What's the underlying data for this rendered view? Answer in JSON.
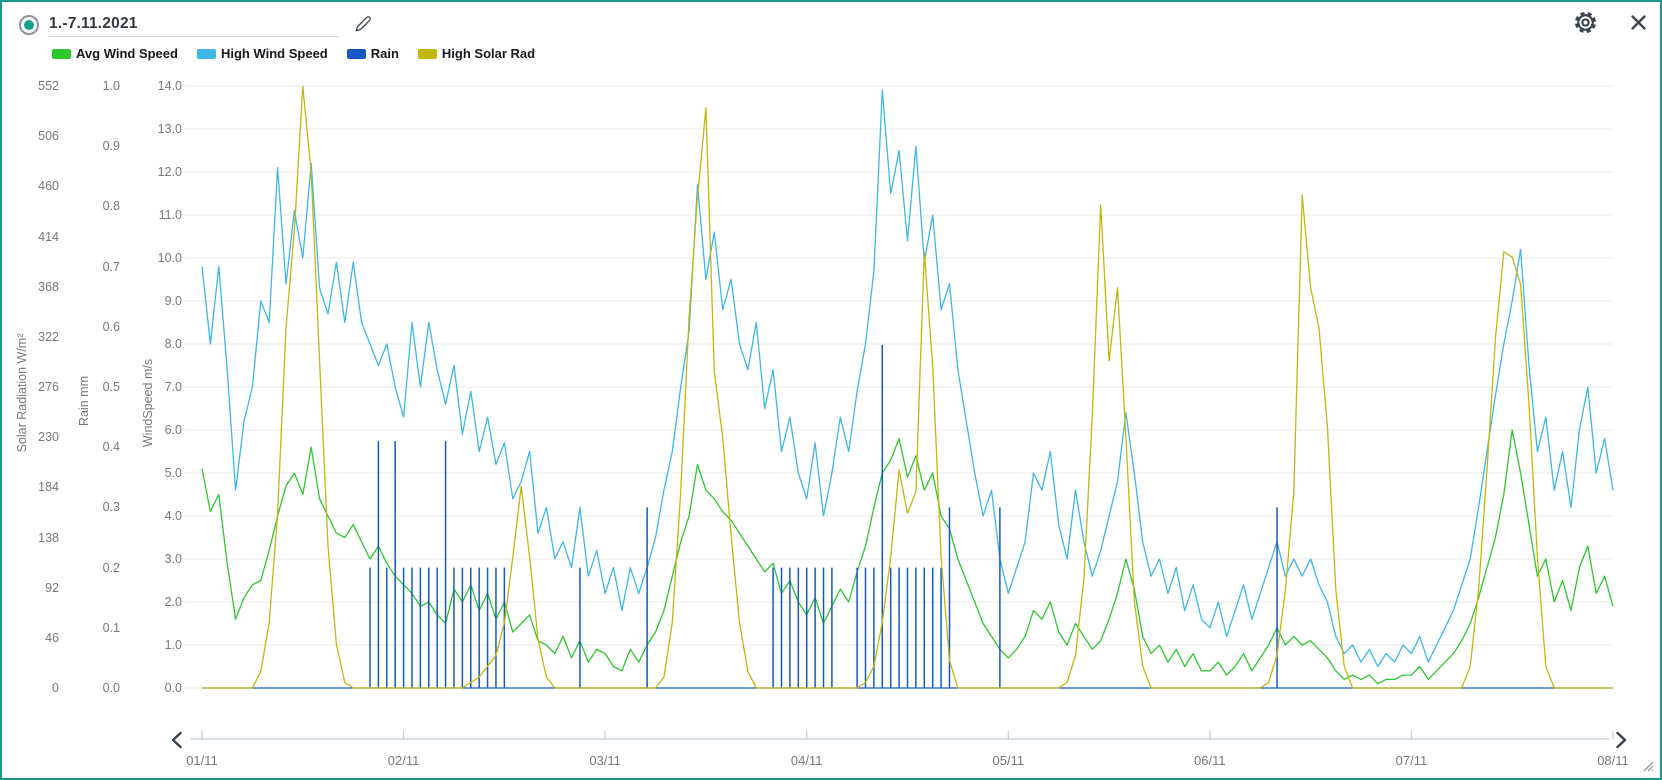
{
  "window": {
    "accent_color": "#18998b"
  },
  "toolbar": {
    "date_range": "1.-7.11.2021",
    "edit_icon": "pencil-icon",
    "settings_icon": "gear-icon",
    "close_icon": "close-icon"
  },
  "legend": {
    "items": [
      {
        "label": "Avg Wind Speed",
        "color": "#2ec72e"
      },
      {
        "label": "High Wind Speed",
        "color": "#3eb7e6"
      },
      {
        "label": "Rain",
        "color": "#1659c2"
      },
      {
        "label": "High Solar Rad",
        "color": "#c4b70c"
      }
    ]
  },
  "axes": {
    "solar": {
      "title": "Solar Radiation W/m²",
      "max": 552,
      "min": 0,
      "tick_labels": [
        "552",
        "506",
        "460",
        "414",
        "368",
        "322",
        "276",
        "230",
        "184",
        "138",
        "92",
        "46",
        "0"
      ]
    },
    "rain": {
      "title": "Rain mm",
      "max": 1.0,
      "min": 0,
      "tick_labels": [
        "1.0",
        "0.9",
        "0.8",
        "0.7",
        "0.6",
        "0.5",
        "0.4",
        "0.3",
        "0.2",
        "0.1",
        "0.0"
      ]
    },
    "wind": {
      "title": "WindSpeed m/s",
      "max": 14.0,
      "min": 0,
      "tick_labels": [
        "14.0",
        "13.0",
        "12.0",
        "11.0",
        "10.0",
        "9.0",
        "8.0",
        "7.0",
        "6.0",
        "5.0",
        "4.0",
        "3.0",
        "2.0",
        "1.0",
        "0.0"
      ]
    }
  },
  "chart_data": {
    "type": "line",
    "title": "",
    "x_start": "01/11 00:00",
    "x_end": "08/11 00:00",
    "x_interval_hours": 1,
    "x_tick_labels": [
      "01/11",
      "02/11",
      "03/11",
      "04/11",
      "05/11",
      "06/11",
      "07/11",
      "08/11"
    ],
    "grid": "horizontal-only",
    "legend_position": "top-left",
    "series": [
      {
        "name": "High Wind Speed",
        "axis": "wind",
        "color": "#3eb7e6",
        "render": "line",
        "values": [
          9.8,
          8.0,
          9.8,
          7.4,
          4.6,
          6.2,
          7.0,
          9.0,
          8.5,
          12.1,
          9.4,
          11.1,
          10.0,
          12.2,
          9.3,
          8.7,
          9.9,
          8.5,
          9.9,
          8.5,
          8.0,
          7.5,
          8.0,
          7.0,
          6.3,
          8.5,
          7.0,
          8.5,
          7.4,
          6.6,
          7.5,
          5.9,
          6.9,
          5.5,
          6.3,
          5.2,
          5.7,
          4.4,
          4.8,
          5.5,
          3.6,
          4.2,
          3.0,
          3.4,
          2.8,
          4.2,
          2.6,
          3.2,
          2.2,
          2.8,
          1.8,
          2.8,
          2.2,
          2.8,
          3.5,
          4.6,
          5.5,
          7.0,
          8.3,
          11.7,
          9.5,
          10.6,
          8.8,
          9.5,
          8.0,
          7.4,
          8.5,
          6.5,
          7.4,
          5.5,
          6.3,
          5.0,
          4.4,
          5.7,
          4.0,
          5.0,
          6.3,
          5.5,
          6.9,
          8.0,
          9.7,
          13.9,
          11.5,
          12.5,
          10.4,
          12.6,
          9.9,
          11.0,
          8.8,
          9.4,
          7.4,
          6.2,
          5.0,
          4.0,
          4.6,
          3.0,
          2.2,
          2.8,
          3.4,
          5.0,
          4.6,
          5.5,
          3.8,
          3.0,
          4.6,
          3.4,
          2.6,
          3.2,
          4.0,
          4.8,
          6.4,
          5.0,
          3.4,
          2.6,
          3.0,
          2.2,
          2.8,
          1.8,
          2.4,
          1.6,
          1.4,
          2.0,
          1.2,
          1.8,
          2.4,
          1.6,
          2.2,
          2.8,
          3.4,
          2.6,
          3.0,
          2.6,
          3.0,
          2.4,
          2.0,
          1.2,
          0.8,
          1.0,
          0.6,
          0.9,
          0.5,
          0.8,
          0.6,
          1.0,
          0.8,
          1.2,
          0.6,
          1.0,
          1.4,
          1.8,
          2.4,
          3.0,
          4.2,
          5.5,
          6.8,
          8.0,
          9.0,
          10.2,
          7.5,
          5.5,
          6.3,
          4.6,
          5.5,
          4.2,
          6.0,
          7.0,
          5.0,
          5.8,
          4.6
        ]
      },
      {
        "name": "Avg Wind Speed",
        "axis": "wind",
        "color": "#2ec72e",
        "render": "line",
        "values": [
          5.1,
          4.1,
          4.5,
          2.9,
          1.6,
          2.1,
          2.4,
          2.5,
          3.2,
          4.0,
          4.7,
          5.0,
          4.5,
          5.6,
          4.4,
          4.0,
          3.6,
          3.5,
          3.8,
          3.4,
          3.0,
          3.3,
          2.9,
          2.6,
          2.4,
          2.2,
          1.9,
          2.0,
          1.7,
          1.5,
          2.3,
          2.0,
          2.4,
          1.8,
          2.2,
          1.6,
          2.0,
          1.3,
          1.5,
          1.7,
          1.1,
          1.0,
          0.8,
          1.2,
          0.7,
          1.1,
          0.6,
          0.9,
          0.8,
          0.5,
          0.4,
          0.9,
          0.6,
          1.0,
          1.3,
          1.8,
          2.6,
          3.4,
          4.0,
          5.2,
          4.6,
          4.4,
          4.1,
          3.9,
          3.6,
          3.3,
          3.0,
          2.7,
          2.9,
          2.2,
          2.5,
          2.0,
          1.7,
          2.1,
          1.5,
          1.9,
          2.3,
          2.0,
          2.7,
          3.3,
          4.2,
          5.0,
          5.3,
          5.8,
          4.9,
          5.4,
          4.6,
          5.0,
          4.0,
          3.7,
          3.0,
          2.5,
          2.0,
          1.5,
          1.2,
          0.9,
          0.7,
          0.9,
          1.2,
          1.8,
          1.6,
          2.0,
          1.3,
          1.0,
          1.5,
          1.2,
          0.9,
          1.1,
          1.6,
          2.2,
          3.0,
          2.3,
          1.2,
          0.8,
          1.0,
          0.6,
          0.9,
          0.5,
          0.8,
          0.4,
          0.4,
          0.6,
          0.3,
          0.5,
          0.8,
          0.4,
          0.7,
          1.0,
          1.4,
          1.0,
          1.2,
          1.0,
          1.1,
          0.9,
          0.7,
          0.4,
          0.2,
          0.3,
          0.2,
          0.3,
          0.1,
          0.2,
          0.2,
          0.3,
          0.3,
          0.5,
          0.2,
          0.4,
          0.6,
          0.8,
          1.1,
          1.5,
          2.1,
          2.8,
          3.5,
          4.5,
          6.0,
          5.0,
          3.8,
          2.6,
          3.0,
          2.0,
          2.5,
          1.8,
          2.8,
          3.3,
          2.2,
          2.6,
          1.9
        ]
      },
      {
        "name": "Rain",
        "axis": "rain",
        "color": "#1659c2",
        "render": "impulse",
        "values": [
          0,
          0,
          0,
          0,
          0,
          0,
          0,
          0,
          0,
          0,
          0,
          0,
          0,
          0,
          0,
          0,
          0,
          0,
          0,
          0,
          0.2,
          0.41,
          0.2,
          0.41,
          0.2,
          0.2,
          0.2,
          0.2,
          0.2,
          0.41,
          0.2,
          0.2,
          0.2,
          0.2,
          0.2,
          0.2,
          0.2,
          0,
          0,
          0,
          0,
          0,
          0,
          0,
          0,
          0.2,
          0,
          0,
          0,
          0,
          0,
          0,
          0,
          0.3,
          0,
          0,
          0,
          0,
          0,
          0,
          0,
          0,
          0,
          0,
          0,
          0,
          0,
          0,
          0.2,
          0.2,
          0.2,
          0.2,
          0.2,
          0.2,
          0.2,
          0.2,
          0,
          0,
          0.2,
          0.2,
          0.2,
          0.57,
          0.2,
          0.2,
          0.2,
          0.2,
          0.2,
          0.2,
          0.2,
          0.3,
          0,
          0,
          0,
          0,
          0,
          0.3,
          0,
          0,
          0,
          0,
          0,
          0,
          0,
          0,
          0,
          0,
          0,
          0,
          0,
          0,
          0,
          0,
          0,
          0,
          0,
          0,
          0,
          0,
          0,
          0,
          0,
          0,
          0,
          0,
          0,
          0,
          0,
          0,
          0.3,
          0,
          0,
          0,
          0,
          0,
          0,
          0,
          0,
          0,
          0,
          0,
          0,
          0,
          0,
          0,
          0,
          0,
          0,
          0,
          0,
          0,
          0,
          0,
          0,
          0,
          0,
          0,
          0,
          0,
          0,
          0,
          0,
          0,
          0,
          0,
          0,
          0,
          0,
          0,
          0
        ]
      },
      {
        "name": "High Solar Rad",
        "axis": "solar",
        "color": "#c4b70c",
        "render": "line",
        "values": [
          0,
          0,
          0,
          0,
          0,
          0,
          0,
          15,
          60,
          160,
          330,
          420,
          552,
          472,
          300,
          130,
          40,
          5,
          0,
          0,
          0,
          0,
          0,
          0,
          0,
          0,
          0,
          0,
          0,
          0,
          0,
          0,
          5,
          10,
          20,
          30,
          60,
          120,
          185,
          120,
          45,
          10,
          0,
          0,
          0,
          0,
          0,
          0,
          0,
          0,
          0,
          0,
          0,
          0,
          0,
          10,
          60,
          180,
          340,
          450,
          532,
          290,
          230,
          140,
          60,
          15,
          0,
          0,
          0,
          0,
          0,
          0,
          0,
          0,
          0,
          0,
          0,
          0,
          0,
          5,
          20,
          60,
          120,
          200,
          160,
          180,
          400,
          295,
          120,
          25,
          0,
          0,
          0,
          0,
          0,
          0,
          0,
          0,
          0,
          0,
          0,
          0,
          0,
          5,
          30,
          100,
          250,
          443,
          300,
          367,
          230,
          80,
          20,
          0,
          0,
          0,
          0,
          0,
          0,
          0,
          0,
          0,
          0,
          0,
          0,
          0,
          0,
          5,
          30,
          90,
          180,
          452,
          367,
          330,
          240,
          90,
          20,
          0,
          0,
          0,
          0,
          0,
          0,
          0,
          0,
          0,
          0,
          0,
          0,
          0,
          0,
          20,
          90,
          200,
          320,
          400,
          395,
          370,
          260,
          120,
          20,
          0,
          0,
          0,
          0,
          0,
          0,
          0,
          0
        ]
      }
    ]
  }
}
